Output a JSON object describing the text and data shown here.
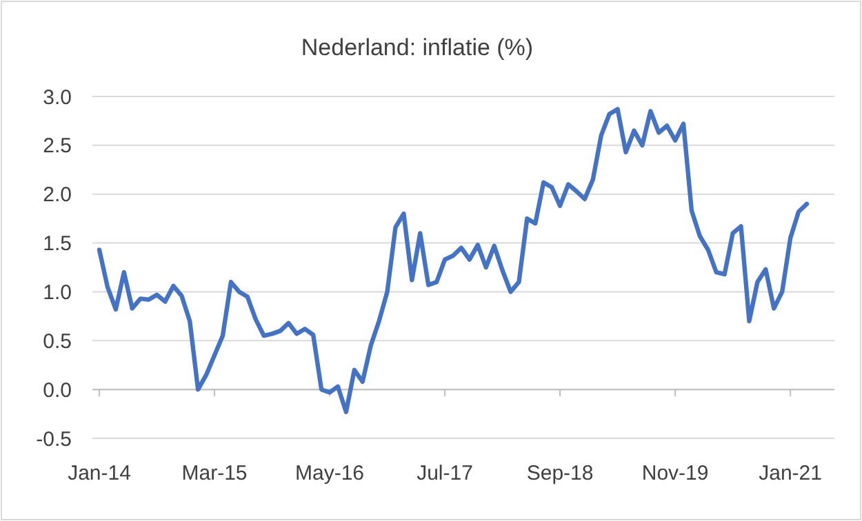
{
  "chart_data": {
    "type": "line",
    "title": "Nederland: inflatie (%)",
    "categories": [
      "Jan-14",
      null,
      null,
      null,
      null,
      null,
      null,
      null,
      null,
      null,
      null,
      null,
      null,
      null,
      "Mar-15",
      null,
      null,
      null,
      null,
      null,
      null,
      null,
      null,
      null,
      null,
      null,
      null,
      null,
      "May-16",
      null,
      null,
      null,
      null,
      null,
      null,
      null,
      null,
      null,
      null,
      null,
      null,
      null,
      "Jul-17",
      null,
      null,
      null,
      null,
      null,
      null,
      null,
      null,
      null,
      null,
      null,
      null,
      null,
      "Sep-18",
      null,
      null,
      null,
      null,
      null,
      null,
      null,
      null,
      null,
      null,
      null,
      null,
      null,
      "Nov-19",
      null,
      null,
      null,
      null,
      null,
      null,
      null,
      null,
      null,
      null,
      null,
      null,
      null,
      "Jan-21",
      null,
      null
    ],
    "series": [
      {
        "color": "#4472c4",
        "values": [
          1.43,
          1.05,
          0.82,
          1.2,
          0.83,
          0.93,
          0.92,
          0.97,
          0.9,
          1.06,
          0.96,
          0.7,
          0.0,
          0.15,
          0.35,
          0.55,
          1.1,
          1.0,
          0.95,
          0.72,
          0.55,
          0.57,
          0.6,
          0.68,
          0.57,
          0.62,
          0.56,
          0.0,
          -0.03,
          0.03,
          -0.23,
          0.2,
          0.08,
          0.45,
          0.7,
          1.0,
          1.66,
          1.8,
          1.12,
          1.6,
          1.07,
          1.1,
          1.33,
          1.37,
          1.45,
          1.33,
          1.48,
          1.25,
          1.47,
          1.22,
          1.0,
          1.1,
          1.75,
          1.7,
          2.12,
          2.07,
          1.88,
          2.1,
          2.03,
          1.95,
          2.15,
          2.6,
          2.82,
          2.87,
          2.43,
          2.65,
          2.5,
          2.85,
          2.63,
          2.7,
          2.55,
          2.72,
          1.83,
          1.57,
          1.43,
          1.2,
          1.18,
          1.6,
          1.67,
          0.7,
          1.1,
          1.23,
          0.83,
          1.0,
          1.55,
          1.82,
          1.9
        ]
      }
    ],
    "ylim": [
      -0.5,
      3.0
    ],
    "yticks": [
      {
        "value": -0.5,
        "label": "-0.5"
      },
      {
        "value": 0,
        "label": "0.0"
      },
      {
        "value": 0.5,
        "label": "0.5"
      },
      {
        "value": 1,
        "label": "1.0"
      },
      {
        "value": 1.5,
        "label": "1.5"
      },
      {
        "value": 2,
        "label": "2.0"
      },
      {
        "value": 2.5,
        "label": "2.5"
      },
      {
        "value": 3,
        "label": "3.0"
      }
    ],
    "grid": "y",
    "marker": "none",
    "line_style": "solid"
  }
}
